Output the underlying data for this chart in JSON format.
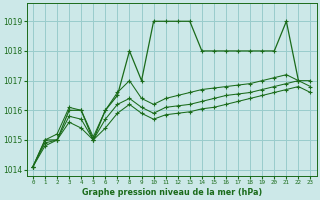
{
  "background_color": "#cce8e8",
  "grid_color": "#99cccc",
  "line_color": "#1a6b1a",
  "title": "Graphe pression niveau de la mer (hPa)",
  "xlim": [
    -0.5,
    23.5
  ],
  "ylim": [
    1013.8,
    1019.6
  ],
  "yticks": [
    1014,
    1015,
    1016,
    1017,
    1018,
    1019
  ],
  "xticks": [
    0,
    1,
    2,
    3,
    4,
    5,
    6,
    7,
    8,
    9,
    10,
    11,
    12,
    13,
    14,
    15,
    16,
    17,
    18,
    19,
    20,
    21,
    22,
    23
  ],
  "series": [
    {
      "x": [
        0,
        1,
        2,
        3,
        4,
        5,
        6,
        7,
        8,
        9,
        10,
        11,
        12,
        13,
        14,
        15,
        16,
        17,
        18,
        19,
        20,
        21,
        22
      ],
      "y": [
        1014.1,
        1015.0,
        1015.0,
        1016.0,
        1016.0,
        1015.0,
        1016.0,
        1016.5,
        1018.0,
        1017.0,
        1019.0,
        1019.0,
        1019.0,
        1019.0,
        1018.0,
        1018.0,
        1018.0,
        1018.0,
        1018.0,
        1018.0,
        1018.0,
        1019.0,
        1017.0
      ]
    },
    {
      "x": [
        0,
        1,
        2,
        3,
        4,
        5,
        6,
        7,
        8,
        9,
        10,
        11,
        12,
        13,
        14,
        15,
        16,
        17,
        18,
        19,
        20,
        21,
        22,
        23
      ],
      "y": [
        1014.1,
        1015.0,
        1015.2,
        1016.1,
        1016.0,
        1015.1,
        1016.0,
        1016.6,
        1017.0,
        1016.4,
        1016.2,
        1016.4,
        1016.5,
        1016.6,
        1016.7,
        1016.75,
        1016.8,
        1016.85,
        1016.9,
        1017.0,
        1017.1,
        1017.2,
        1017.0,
        1017.0
      ]
    },
    {
      "x": [
        0,
        1,
        2,
        3,
        4,
        5,
        6,
        7,
        8,
        9,
        10,
        11,
        12,
        13,
        14,
        15,
        16,
        17,
        18,
        19,
        20,
        21,
        22,
        23
      ],
      "y": [
        1014.1,
        1014.9,
        1015.0,
        1015.8,
        1015.7,
        1015.0,
        1015.7,
        1016.2,
        1016.4,
        1016.1,
        1015.9,
        1016.1,
        1016.15,
        1016.2,
        1016.3,
        1016.4,
        1016.5,
        1016.55,
        1016.6,
        1016.7,
        1016.8,
        1016.9,
        1017.0,
        1016.8
      ]
    },
    {
      "x": [
        0,
        1,
        2,
        3,
        4,
        5,
        6,
        7,
        8,
        9,
        10,
        11,
        12,
        13,
        14,
        15,
        16,
        17,
        18,
        19,
        20,
        21,
        22,
        23
      ],
      "y": [
        1014.1,
        1014.8,
        1015.0,
        1015.6,
        1015.4,
        1015.0,
        1015.4,
        1015.9,
        1016.2,
        1015.9,
        1015.7,
        1015.85,
        1015.9,
        1015.95,
        1016.05,
        1016.1,
        1016.2,
        1016.3,
        1016.4,
        1016.5,
        1016.6,
        1016.7,
        1016.8,
        1016.6
      ]
    }
  ]
}
